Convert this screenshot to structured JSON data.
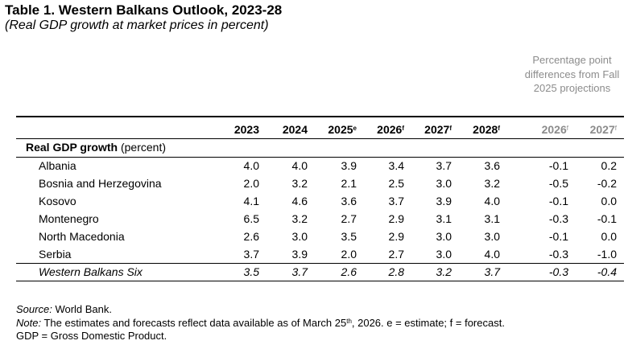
{
  "title": "Table 1. Western Balkans Outlook, 2023-28",
  "subtitle": "(Real GDP growth at market prices in percent)",
  "diff_header": "Percentage point differences from Fall 2025 projections",
  "columns": [
    {
      "label": "2023",
      "sup": ""
    },
    {
      "label": "2024",
      "sup": ""
    },
    {
      "label": "2025",
      "sup": "e"
    },
    {
      "label": "2026",
      "sup": "f"
    },
    {
      "label": "2027",
      "sup": "f"
    },
    {
      "label": "2028",
      "sup": "f"
    },
    {
      "label": "2026",
      "sup": "f"
    },
    {
      "label": "2027",
      "sup": "f"
    }
  ],
  "section_label": "Real GDP growth",
  "section_unit": "(percent)",
  "rows": [
    {
      "name": "Albania",
      "values": [
        "4.0",
        "4.0",
        "3.9",
        "3.4",
        "3.7",
        "3.6",
        "-0.1",
        "0.2"
      ]
    },
    {
      "name": "Bosnia and Herzegovina",
      "values": [
        "2.0",
        "3.2",
        "2.1",
        "2.5",
        "3.0",
        "3.2",
        "-0.5",
        "-0.2"
      ]
    },
    {
      "name": "Kosovo",
      "values": [
        "4.1",
        "4.6",
        "3.6",
        "3.7",
        "3.9",
        "4.0",
        "-0.1",
        "0.0"
      ]
    },
    {
      "name": "Montenegro",
      "values": [
        "6.5",
        "3.2",
        "2.7",
        "2.9",
        "3.1",
        "3.1",
        "-0.3",
        "-0.1"
      ]
    },
    {
      "name": "North Macedonia",
      "values": [
        "2.6",
        "3.0",
        "3.5",
        "2.9",
        "3.0",
        "3.0",
        "-0.1",
        "0.0"
      ]
    },
    {
      "name": "Serbia",
      "values": [
        "3.7",
        "3.9",
        "2.0",
        "2.7",
        "3.0",
        "4.0",
        "-0.3",
        "-1.0"
      ]
    }
  ],
  "total_row": {
    "name": "Western Balkans Six",
    "values": [
      "3.5",
      "3.7",
      "2.6",
      "2.8",
      "3.2",
      "3.7",
      "-0.3",
      "-0.4"
    ]
  },
  "footer": {
    "source_label": "Source:",
    "source_text": "World Bank.",
    "note_label": "Note:",
    "note_text_1": "The estimates and forecasts reflect data available as of March 25",
    "note_sup": "th",
    "note_text_2": ", 2026. e = estimate; f = forecast.",
    "gdp_text": "GDP = Gross Domestic Product."
  }
}
